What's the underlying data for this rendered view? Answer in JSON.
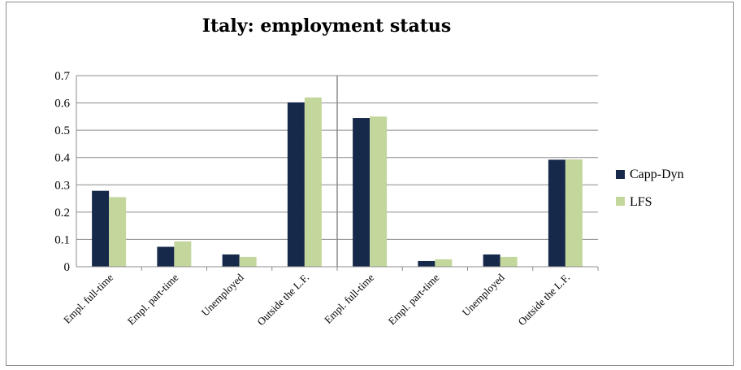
{
  "chart_data": {
    "type": "bar",
    "title": "Italy: employment status",
    "xlabel": "",
    "ylabel": "",
    "ylim": [
      0,
      0.7
    ],
    "yticks": [
      0,
      0.1,
      0.2,
      0.3,
      0.4,
      0.5,
      0.6,
      0.7
    ],
    "ytick_labels": [
      "0",
      "0.1",
      "0.2",
      "0.3",
      "0.4",
      "0.5",
      "0.6",
      "0.7"
    ],
    "grid": true,
    "legend": "right",
    "categories": [
      "Empl. full-time",
      "Empl. part-time",
      "Unemployed",
      "Outside the L.F.",
      "Empl. full-time",
      "Empl. part-time",
      "Unemployed",
      "Outside the L.F."
    ],
    "group_divider_after_index": 3,
    "series": [
      {
        "name": "Capp-Dyn",
        "color": "#17294a",
        "values": [
          0.278,
          0.073,
          0.045,
          0.602,
          0.545,
          0.021,
          0.045,
          0.392
        ]
      },
      {
        "name": "LFS",
        "color": "#c3d69b",
        "values": [
          0.255,
          0.093,
          0.036,
          0.62,
          0.55,
          0.027,
          0.036,
          0.393
        ]
      }
    ]
  }
}
